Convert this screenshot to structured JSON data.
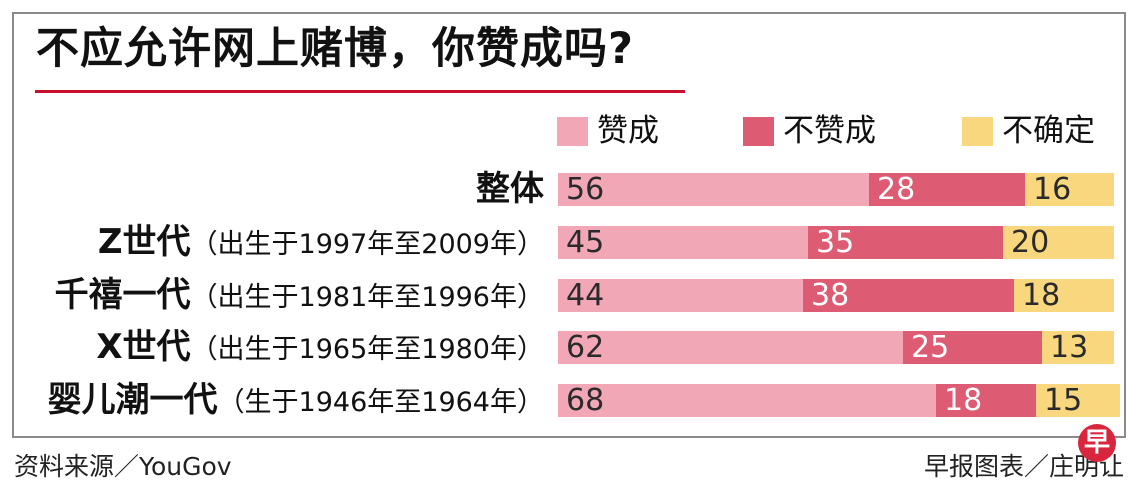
{
  "title": "不应允许网上赌博，你赞成吗?",
  "legend": [
    {
      "label": "赞成",
      "color": "#f2a7b7"
    },
    {
      "label": "不赞成",
      "color": "#dd5b73"
    },
    {
      "label": "不确定",
      "color": "#f9d77e"
    }
  ],
  "chart_data": {
    "type": "bar",
    "orientation": "horizontal",
    "stacked": true,
    "title": "不应允许网上赌博，你赞成吗?",
    "categories": [
      {
        "name": "整体",
        "range": ""
      },
      {
        "name": "Z世代",
        "range": "（出生于1997年至2009年）"
      },
      {
        "name": "千禧一代",
        "range": "（出生于1981年至1996年）"
      },
      {
        "name": "X世代",
        "range": "（出生于1965年至1980年）"
      },
      {
        "name": "婴儿潮一代",
        "range": "（生于1946年至1964年）"
      }
    ],
    "series": [
      {
        "name": "赞成",
        "values": [
          56,
          45,
          44,
          62,
          68
        ],
        "color": "#f2a7b7"
      },
      {
        "name": "不赞成",
        "values": [
          28,
          35,
          38,
          25,
          18
        ],
        "color": "#dd5b73"
      },
      {
        "name": "不确定",
        "values": [
          16,
          20,
          18,
          13,
          15
        ],
        "color": "#f9d77e"
      }
    ],
    "xlim": [
      0,
      100
    ],
    "legend_position": "top-right",
    "grid": false
  },
  "footer": {
    "source": "资料来源／YouGov",
    "credit": "早报图表／庄明让",
    "logo_text": "早"
  }
}
